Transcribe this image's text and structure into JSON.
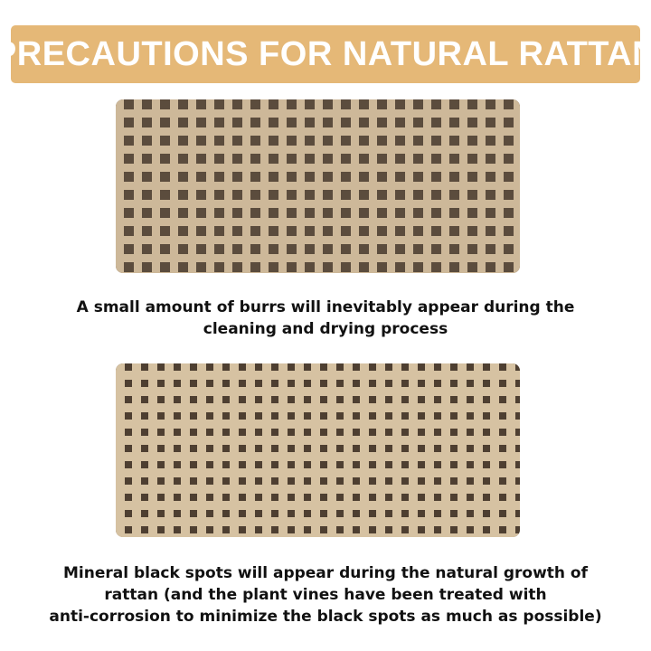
{
  "banner": {
    "title": "PRECAUTIONS FOR NATURAL RATTAN",
    "color": "#E5B877"
  },
  "section1": {
    "image": "rattan-weave-photo",
    "caption_lines": [
      "A small amount of burrs will inevitably appear during the",
      "cleaning and drying process"
    ]
  },
  "section2": {
    "image": "rattan-weave-photo",
    "caption_lines": [
      "Mineral black spots will appear during the natural growth of",
      "rattan (and the plant vines have been treated with",
      "anti-corrosion to minimize the black spots as much as possible)"
    ]
  }
}
